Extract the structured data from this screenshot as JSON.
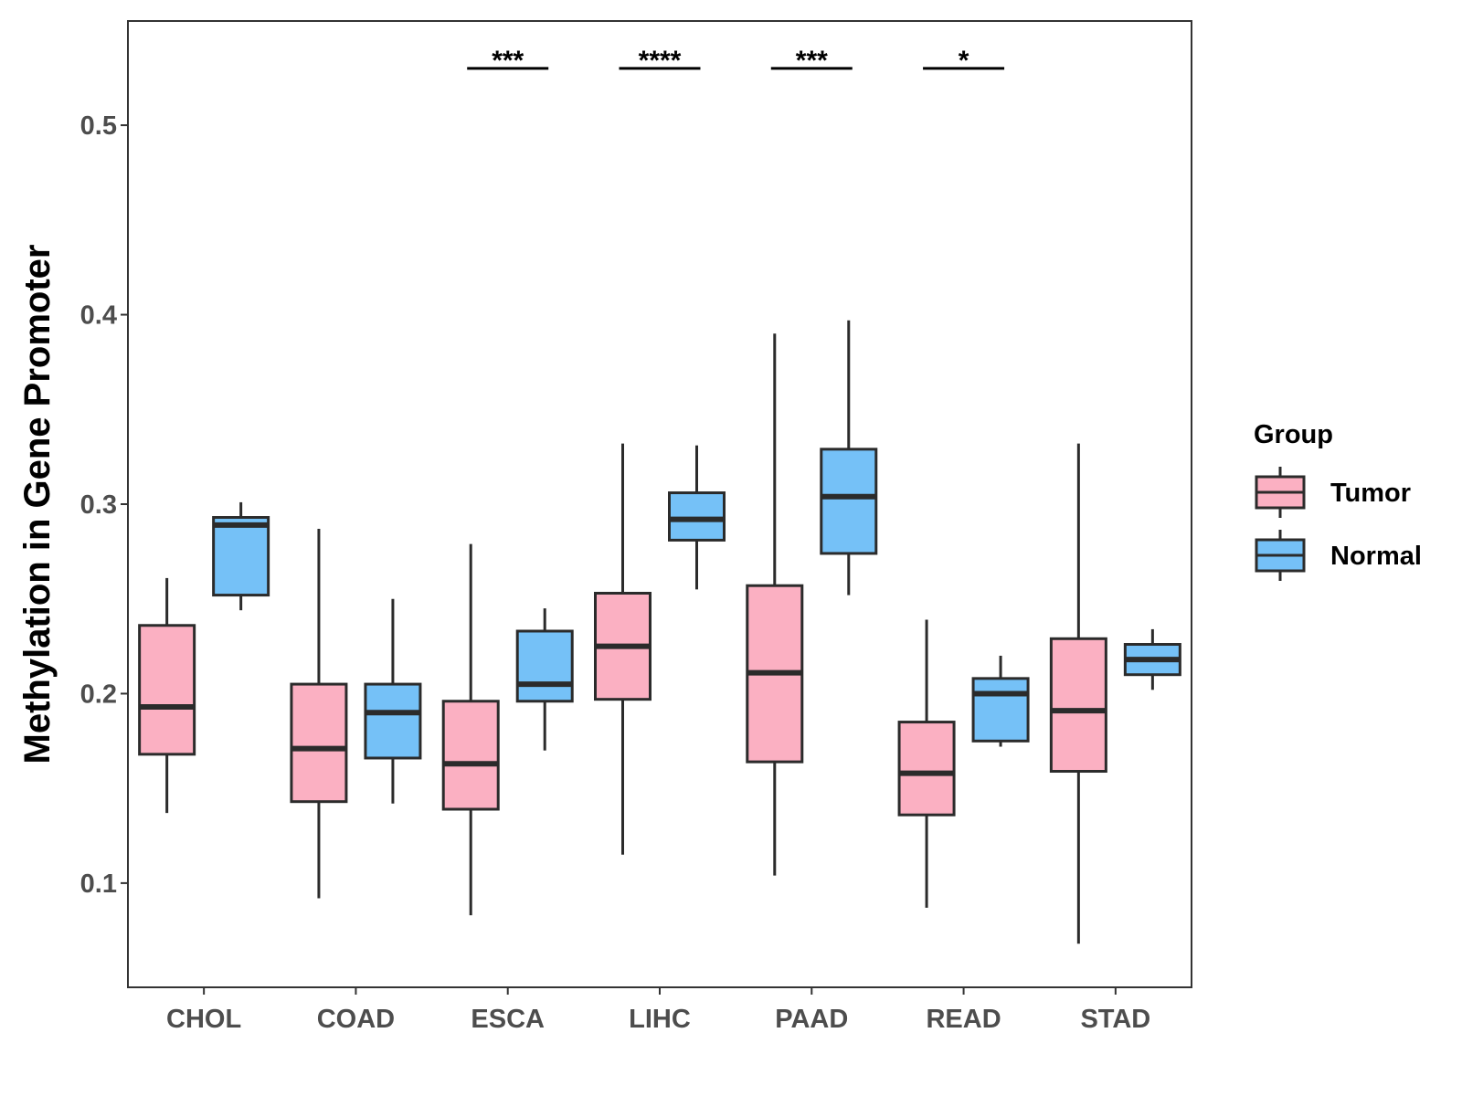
{
  "chart_data": {
    "type": "boxplot",
    "ylabel": "Methylation in Gene Promoter",
    "xlabel": "",
    "ylim": [
      0.045,
      0.555
    ],
    "y_ticks": [
      {
        "value": 0.1,
        "label": "0.1"
      },
      {
        "value": 0.2,
        "label": "0.2"
      },
      {
        "value": 0.3,
        "label": "0.3"
      },
      {
        "value": 0.4,
        "label": "0.4"
      },
      {
        "value": 0.5,
        "label": "0.5"
      }
    ],
    "categories": [
      "CHOL",
      "COAD",
      "ESCA",
      "LIHC",
      "PAAD",
      "READ",
      "STAD"
    ],
    "legend": {
      "title": "Group",
      "position": "right",
      "items": [
        {
          "name": "Tumor",
          "color": "#FBB0C2"
        },
        {
          "name": "Normal",
          "color": "#75C1F7"
        }
      ]
    },
    "series": [
      {
        "name": "Tumor",
        "color": "#FBB0C2",
        "boxes": [
          {
            "category": "CHOL",
            "min": 0.137,
            "q1": 0.168,
            "median": 0.193,
            "q3": 0.236,
            "max": 0.261
          },
          {
            "category": "COAD",
            "min": 0.092,
            "q1": 0.143,
            "median": 0.171,
            "q3": 0.205,
            "max": 0.287
          },
          {
            "category": "ESCA",
            "min": 0.083,
            "q1": 0.139,
            "median": 0.163,
            "q3": 0.196,
            "max": 0.279
          },
          {
            "category": "LIHC",
            "min": 0.115,
            "q1": 0.197,
            "median": 0.225,
            "q3": 0.253,
            "max": 0.332
          },
          {
            "category": "PAAD",
            "min": 0.104,
            "q1": 0.164,
            "median": 0.211,
            "q3": 0.257,
            "max": 0.39
          },
          {
            "category": "READ",
            "min": 0.087,
            "q1": 0.136,
            "median": 0.158,
            "q3": 0.185,
            "max": 0.239
          },
          {
            "category": "STAD",
            "min": 0.068,
            "q1": 0.159,
            "median": 0.191,
            "q3": 0.229,
            "max": 0.332
          }
        ]
      },
      {
        "name": "Normal",
        "color": "#75C1F7",
        "boxes": [
          {
            "category": "CHOL",
            "min": 0.244,
            "q1": 0.252,
            "median": 0.289,
            "q3": 0.293,
            "max": 0.301
          },
          {
            "category": "COAD",
            "min": 0.142,
            "q1": 0.166,
            "median": 0.19,
            "q3": 0.205,
            "max": 0.25
          },
          {
            "category": "ESCA",
            "min": 0.17,
            "q1": 0.196,
            "median": 0.205,
            "q3": 0.233,
            "max": 0.245
          },
          {
            "category": "LIHC",
            "min": 0.255,
            "q1": 0.281,
            "median": 0.292,
            "q3": 0.306,
            "max": 0.331
          },
          {
            "category": "PAAD",
            "min": 0.252,
            "q1": 0.274,
            "median": 0.304,
            "q3": 0.329,
            "max": 0.397
          },
          {
            "category": "READ",
            "min": 0.172,
            "q1": 0.175,
            "median": 0.2,
            "q3": 0.208,
            "max": 0.22
          },
          {
            "category": "STAD",
            "min": 0.202,
            "q1": 0.21,
            "median": 0.218,
            "q3": 0.226,
            "max": 0.234
          }
        ]
      }
    ],
    "annotations": [
      {
        "category": "ESCA",
        "label": "***",
        "y": 0.53
      },
      {
        "category": "LIHC",
        "label": "****",
        "y": 0.53
      },
      {
        "category": "PAAD",
        "label": "***",
        "y": 0.53
      },
      {
        "category": "READ",
        "label": "*",
        "y": 0.53
      }
    ],
    "colors": {
      "box_stroke": "#2b2b2b",
      "axis": "#333333",
      "tick_text": "#4d4d4d"
    }
  }
}
